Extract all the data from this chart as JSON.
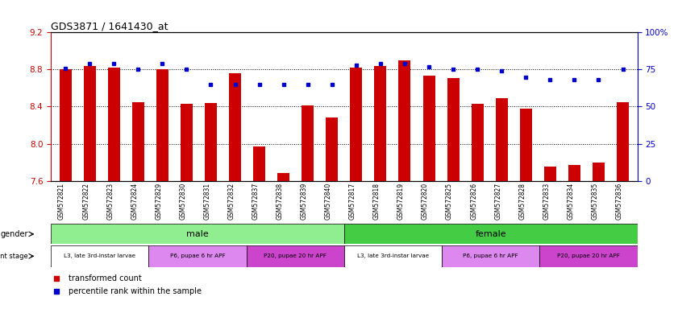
{
  "title": "GDS3871 / 1641430_at",
  "samples": [
    "GSM572821",
    "GSM572822",
    "GSM572823",
    "GSM572824",
    "GSM572829",
    "GSM572830",
    "GSM572831",
    "GSM572832",
    "GSM572837",
    "GSM572838",
    "GSM572839",
    "GSM572840",
    "GSM572817",
    "GSM572818",
    "GSM572819",
    "GSM572820",
    "GSM572825",
    "GSM572826",
    "GSM572827",
    "GSM572828",
    "GSM572833",
    "GSM572834",
    "GSM572835",
    "GSM572836"
  ],
  "bar_values": [
    8.8,
    8.84,
    8.82,
    8.45,
    8.8,
    8.43,
    8.44,
    8.76,
    7.97,
    7.68,
    8.41,
    8.28,
    8.82,
    8.84,
    8.9,
    8.73,
    8.71,
    8.43,
    8.49,
    8.38,
    7.75,
    7.77,
    7.8,
    8.45
  ],
  "percentile_values": [
    76,
    79,
    79,
    75,
    79,
    75,
    65,
    65,
    65,
    65,
    65,
    65,
    78,
    79,
    79,
    77,
    75,
    75,
    74,
    70,
    68,
    68,
    68,
    75
  ],
  "ylim_left": [
    7.6,
    9.2
  ],
  "ylim_right": [
    0,
    100
  ],
  "yticks_left": [
    7.6,
    8.0,
    8.4,
    8.8,
    9.2
  ],
  "yticks_right": [
    0,
    25,
    50,
    75,
    100
  ],
  "ytick_labels_right": [
    "0",
    "25",
    "50",
    "75",
    "100%"
  ],
  "bar_color": "#CC0000",
  "dot_color": "#0000CC",
  "bar_width": 0.5,
  "gender_male_color": "#90EE90",
  "gender_female_color": "#44CC44",
  "dev_l3_color": "#FFFFFF",
  "dev_p6_color": "#DD88EE",
  "dev_p20_color": "#CC44CC",
  "male_samples": 12,
  "female_samples": 12,
  "dev_stages": [
    {
      "label": "L3, late 3rd-instar larvae",
      "start": 0,
      "end": 4,
      "color": "#FFFFFF"
    },
    {
      "label": "P6, pupae 6 hr APF",
      "start": 4,
      "end": 8,
      "color": "#DD88EE"
    },
    {
      "label": "P20, pupae 20 hr APF",
      "start": 8,
      "end": 12,
      "color": "#CC44CC"
    },
    {
      "label": "L3, late 3rd-instar larvae",
      "start": 12,
      "end": 16,
      "color": "#FFFFFF"
    },
    {
      "label": "P6, pupae 6 hr APF",
      "start": 16,
      "end": 20,
      "color": "#DD88EE"
    },
    {
      "label": "P20, pupae 20 hr APF",
      "start": 20,
      "end": 24,
      "color": "#CC44CC"
    }
  ],
  "legend_bar_label": "transformed count",
  "legend_dot_label": "percentile rank within the sample",
  "axis_label_color_left": "#CC0000",
  "axis_label_color_right": "#0000CC"
}
